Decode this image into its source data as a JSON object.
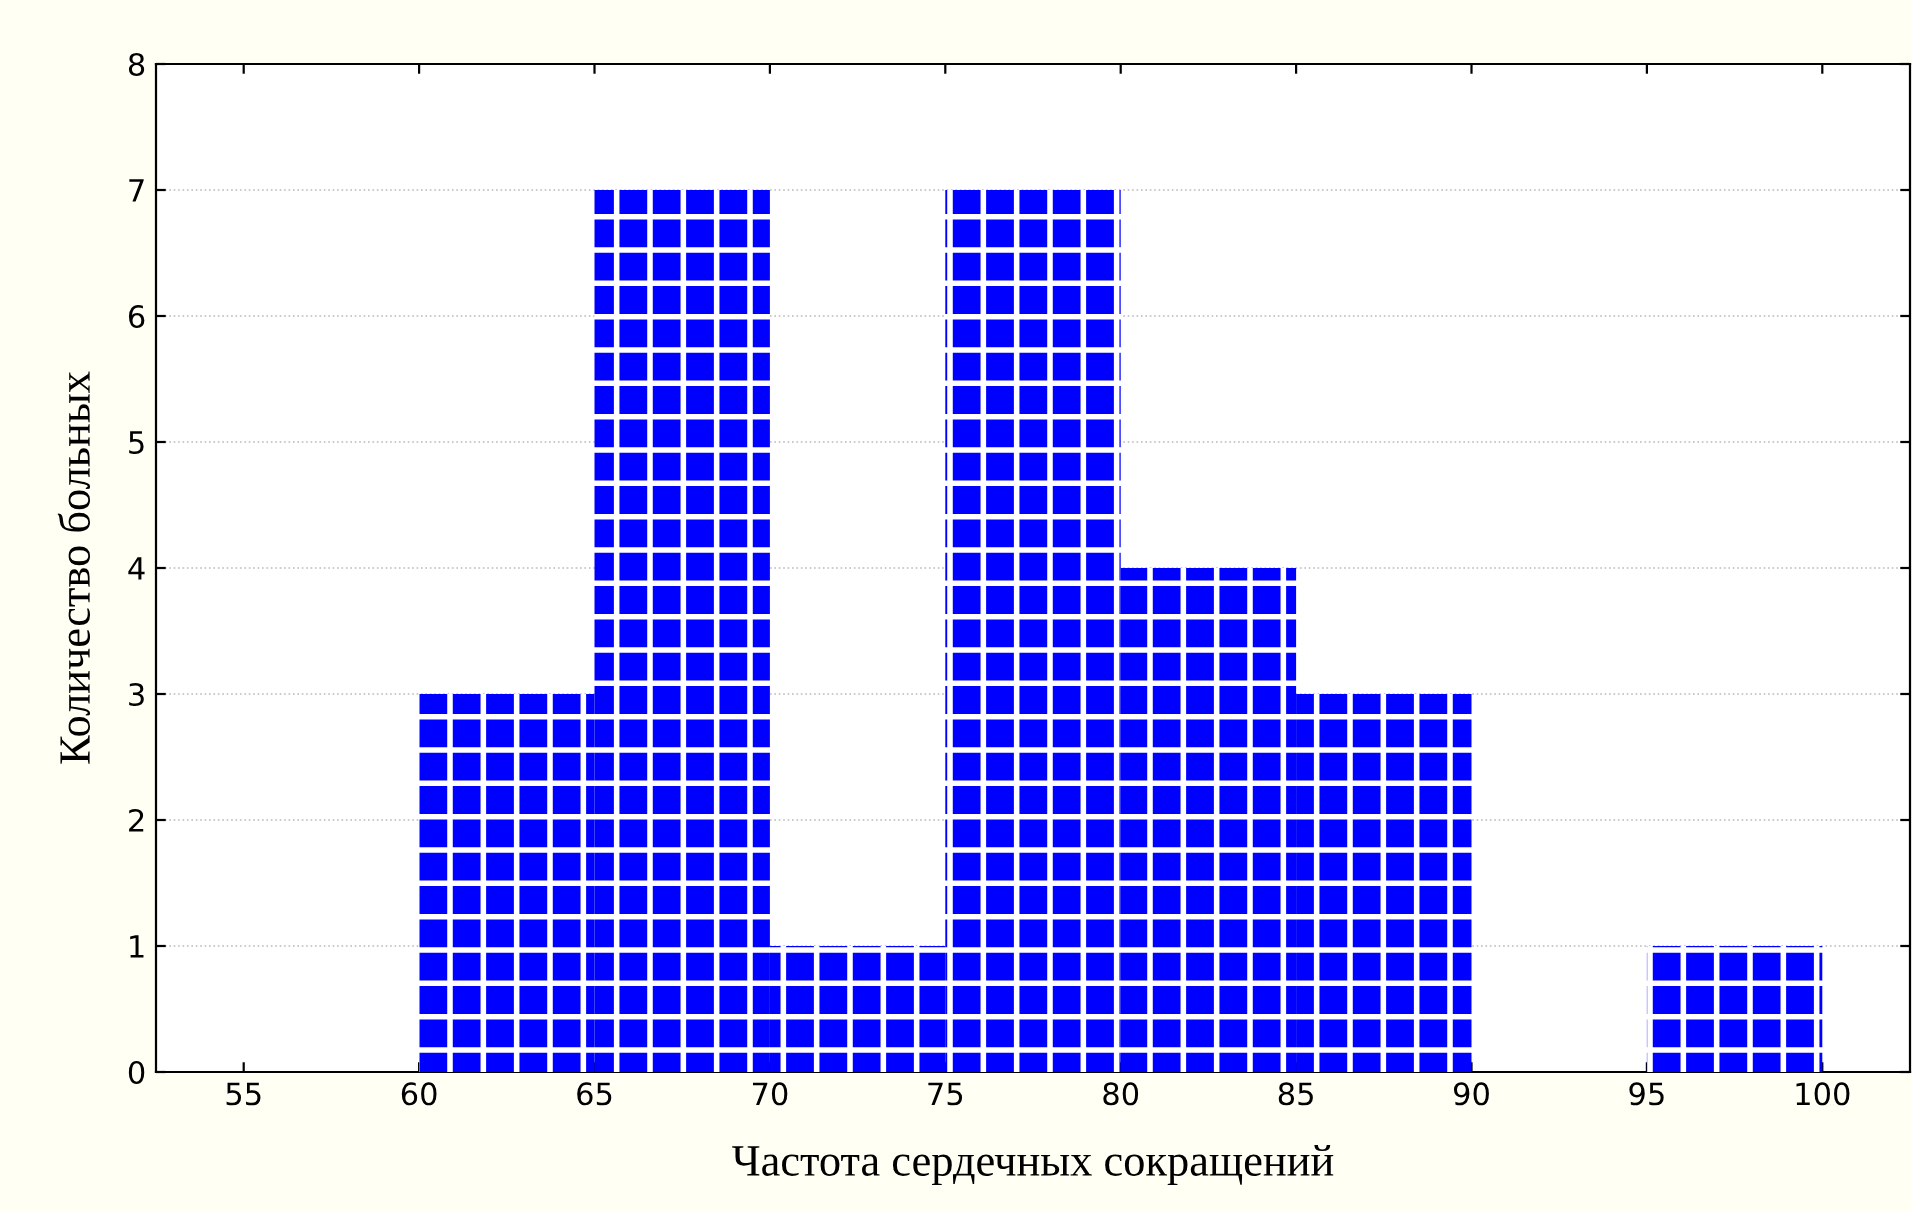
{
  "chart_data": {
    "type": "histogram",
    "xlabel": "Частота сердечных сокращений",
    "ylabel": "Количество больных",
    "bins": [
      60,
      65,
      70,
      75,
      80,
      85,
      90,
      95,
      100
    ],
    "values": [
      3,
      7,
      1,
      7,
      4,
      3,
      0,
      1
    ],
    "color": "#0000ff",
    "xlim": [
      52.5,
      102.5
    ],
    "xticks": [
      55,
      60,
      65,
      70,
      75,
      80,
      85,
      90,
      95,
      100
    ],
    "ylim": [
      0,
      8
    ],
    "yticks": [
      0,
      1,
      2,
      3,
      4,
      5,
      6,
      7,
      8
    ],
    "grid": "y"
  }
}
